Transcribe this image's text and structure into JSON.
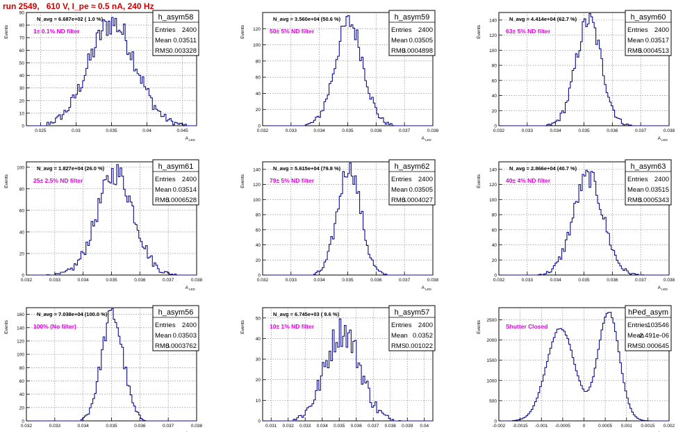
{
  "run_title": "run 2549,   610 V, I_pe ≈ 0.5 nA, 240 Hz",
  "stats_labels": {
    "entries": "Entries",
    "mean": "Mean",
    "rms": "RMS"
  },
  "axis_labels": {
    "x": "A",
    "x_sub": "LED",
    "y": "Events"
  },
  "colors": {
    "histogram": "#0a0a8c",
    "filter_label": "#e000e0",
    "title": "#cc0000"
  },
  "chart_data": [
    {
      "type": "histogram",
      "name": "h_asym58",
      "navg": "N_avg = 6.687e+02 ( 1.0 %)",
      "filter": "1± 0.1% ND filter",
      "entries": "2400",
      "mean": "0.03511",
      "rms": "0.003328",
      "xlim": [
        0.023,
        0.047
      ],
      "ylim": [
        0,
        90
      ],
      "xticks": [
        0.025,
        0.03,
        0.035,
        0.04,
        0.045
      ],
      "yticks": [
        0,
        10,
        20,
        30,
        40,
        50,
        60,
        70,
        80,
        90
      ],
      "xtick_labels": [
        "0.025",
        "0.03",
        "0.035",
        "0.04",
        "0.045"
      ],
      "ytick_labels": [
        "0",
        "10",
        "20",
        "30",
        "40",
        "50",
        "60",
        "70",
        "80",
        "90"
      ],
      "dist": {
        "type": "gauss",
        "mu": 0.0351,
        "sigma": 0.0033,
        "peak": 82,
        "lo": 0.0258,
        "hi": 0.0455
      }
    },
    {
      "type": "histogram",
      "name": "h_asym59",
      "navg": "N_avg = 3.560e+04 (50.6 %)",
      "filter": "50± 5% ND filter",
      "entries": "2400",
      "mean": "0.03505",
      "rms": "0.0004898",
      "xlim": [
        0.032,
        0.038
      ],
      "ylim": [
        0,
        140
      ],
      "xticks": [
        0.032,
        0.033,
        0.034,
        0.035,
        0.036,
        0.037,
        0.038
      ],
      "yticks": [
        0,
        20,
        40,
        60,
        80,
        100,
        120
      ],
      "xtick_labels": [
        "0.032",
        "0.033",
        "0.034",
        "0.035",
        "0.036",
        "0.037",
        "0.038"
      ],
      "ytick_labels": [
        "0",
        "20",
        "40",
        "60",
        "80",
        "100",
        "120"
      ],
      "dist": {
        "type": "gauss",
        "mu": 0.03505,
        "sigma": 0.00049,
        "peak": 128,
        "lo": 0.0335,
        "hi": 0.0366
      }
    },
    {
      "type": "histogram",
      "name": "h_asym60",
      "navg": "N_avg = 4.414e+04 (62.7 %)",
      "filter": "63± 5% ND filter",
      "entries": "2400",
      "mean": "0.03517",
      "rms": "0.0004513",
      "xlim": [
        0.032,
        0.038
      ],
      "ylim": [
        0,
        150
      ],
      "xticks": [
        0.032,
        0.033,
        0.034,
        0.035,
        0.036,
        0.037,
        0.038
      ],
      "yticks": [
        0,
        20,
        40,
        60,
        80,
        100,
        120,
        140
      ],
      "xtick_labels": [
        "0.032",
        "0.033",
        "0.034",
        "0.035",
        "0.036",
        "0.037",
        "0.038"
      ],
      "ytick_labels": [
        "0",
        "20",
        "40",
        "60",
        "80",
        "100",
        "120",
        "140"
      ],
      "dist": {
        "type": "gauss",
        "mu": 0.03517,
        "sigma": 0.00045,
        "peak": 140,
        "lo": 0.0337,
        "hi": 0.0367
      }
    },
    {
      "type": "histogram",
      "name": "h_asym61",
      "navg": "N_avg = 1.827e+04 (26.0 %)",
      "filter": "25± 2.5% ND filter",
      "entries": "2400",
      "mean": "0.03514",
      "rms": "0.0006528",
      "xlim": [
        0.032,
        0.038
      ],
      "ylim": [
        0,
        105
      ],
      "xticks": [
        0.032,
        0.033,
        0.034,
        0.035,
        0.036,
        0.037,
        0.038
      ],
      "yticks": [
        0,
        20,
        40,
        60,
        80,
        100
      ],
      "xtick_labels": [
        "0.032",
        "0.033",
        "0.034",
        "0.035",
        "0.036",
        "0.037",
        "0.038"
      ],
      "ytick_labels": [
        "0",
        "20",
        "40",
        "60",
        "80",
        "100"
      ],
      "dist": {
        "type": "gauss",
        "mu": 0.03514,
        "sigma": 0.00065,
        "peak": 95,
        "lo": 0.0326,
        "hi": 0.0374
      }
    },
    {
      "type": "histogram",
      "name": "h_asym62",
      "navg": "N_avg = 5.615e+04 (79.8 %)",
      "filter": "79± 5% ND filter",
      "entries": "2400",
      "mean": "0.03505",
      "rms": "0.0004027",
      "xlim": [
        0.032,
        0.038
      ],
      "ylim": [
        0,
        150
      ],
      "xticks": [
        0.032,
        0.033,
        0.034,
        0.035,
        0.036,
        0.037,
        0.038
      ],
      "yticks": [
        0,
        20,
        40,
        60,
        80,
        100,
        120,
        140
      ],
      "xtick_labels": [
        "0.032",
        "0.033",
        "0.034",
        "0.035",
        "0.036",
        "0.037",
        "0.038"
      ],
      "ytick_labels": [
        "0",
        "20",
        "40",
        "60",
        "80",
        "100",
        "120",
        "140"
      ],
      "dist": {
        "type": "gauss",
        "mu": 0.03505,
        "sigma": 0.0004,
        "peak": 145,
        "lo": 0.0338,
        "hi": 0.0364
      }
    },
    {
      "type": "histogram",
      "name": "h_asym63",
      "navg": "N_avg = 2.866e+04 (40.7 %)",
      "filter": "40± 4% ND filter",
      "entries": "2400",
      "mean": "0.03515",
      "rms": "0.0005343",
      "xlim": [
        0.032,
        0.038
      ],
      "ylim": [
        0,
        150
      ],
      "xticks": [
        0.032,
        0.033,
        0.034,
        0.035,
        0.036,
        0.037,
        0.038
      ],
      "yticks": [
        0,
        20,
        40,
        60,
        80,
        100,
        120,
        140
      ],
      "xtick_labels": [
        "0.032",
        "0.033",
        "0.034",
        "0.035",
        "0.036",
        "0.037",
        "0.038"
      ],
      "ytick_labels": [
        "0",
        "20",
        "40",
        "60",
        "80",
        "100",
        "120",
        "140"
      ],
      "dist": {
        "type": "gauss",
        "mu": 0.03515,
        "sigma": 0.00053,
        "peak": 130,
        "lo": 0.0334,
        "hi": 0.0371
      }
    },
    {
      "type": "histogram",
      "name": "h_asym56",
      "navg": "N_avg = 7.038e+04 (100.0 %)",
      "filter": "100% (No filter)",
      "entries": "2400",
      "mean": "0.03503",
      "rms": "0.0003762",
      "xlim": [
        0.032,
        0.038
      ],
      "ylim": [
        0,
        170
      ],
      "xticks": [
        0.032,
        0.033,
        0.034,
        0.035,
        0.036,
        0.037,
        0.038
      ],
      "yticks": [
        0,
        20,
        40,
        60,
        80,
        100,
        120,
        140,
        160
      ],
      "xtick_labels": [
        "0.032",
        "0.033",
        "0.034",
        "0.035",
        "0.036",
        "0.037",
        "0.038"
      ],
      "ytick_labels": [
        "0",
        "20",
        "40",
        "60",
        "80",
        "100",
        "120",
        "140",
        "160"
      ],
      "dist": {
        "type": "gauss",
        "mu": 0.03503,
        "sigma": 0.00038,
        "peak": 160,
        "lo": 0.0339,
        "hi": 0.0363
      }
    },
    {
      "type": "histogram",
      "name": "h_asym57",
      "navg": "N_avg = 6.745e+03 ( 9.6 %)",
      "filter": "10± 1% ND filter",
      "entries": "2400",
      "mean": "0.0352",
      "rms": "0.001022",
      "xlim": [
        0.0305,
        0.0405
      ],
      "ylim": [
        0,
        55
      ],
      "xticks": [
        0.031,
        0.032,
        0.033,
        0.034,
        0.035,
        0.036,
        0.037,
        0.038,
        0.039,
        0.04
      ],
      "yticks": [
        0,
        10,
        20,
        30,
        40,
        50
      ],
      "xtick_labels": [
        "0.031",
        "0.032",
        "0.033",
        "0.034",
        "0.035",
        "0.036",
        "0.037",
        "0.038",
        "0.039",
        "0.04"
      ],
      "ytick_labels": [
        "0",
        "10",
        "20",
        "30",
        "40",
        "50"
      ],
      "dist": {
        "type": "gauss",
        "mu": 0.0352,
        "sigma": 0.00102,
        "peak": 44,
        "lo": 0.0323,
        "hi": 0.0386
      }
    },
    {
      "type": "histogram",
      "name": "hPed_asym",
      "navg": "",
      "filter": "Shutter Closed",
      "entries": "103546",
      "mean": "-2.491e-06",
      "rms": "0.000645",
      "xlim": [
        -0.002,
        0.002
      ],
      "ylim": [
        0,
        2800
      ],
      "xticks": [
        -0.002,
        -0.0015,
        -0.001,
        -0.0005,
        0,
        0.0005,
        0.001,
        0.0015,
        0.002
      ],
      "yticks": [
        0,
        500,
        1000,
        1500,
        2000,
        2500
      ],
      "xtick_labels": [
        "-0.002",
        "-0.0015",
        "-0.001",
        "-0.0005",
        "0",
        "0.0005",
        "0.001",
        "0.0015",
        "0.002"
      ],
      "ytick_labels": [
        "0",
        "500",
        "1000",
        "1500",
        "2000",
        "2500"
      ],
      "dist": {
        "type": "bimodal",
        "mu1": -0.00055,
        "mu2": 0.00058,
        "sigma1": 0.00033,
        "sigma2": 0.00025,
        "peak1": 2300,
        "peak2": 2700,
        "lo": -0.0017,
        "hi": 0.0018
      }
    }
  ]
}
